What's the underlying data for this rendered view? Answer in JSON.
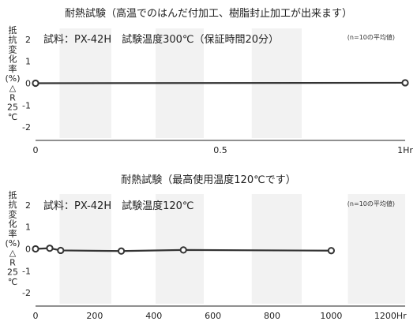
{
  "chart_data": [
    {
      "type": "line",
      "title": "耐熱試験（高温でのはんだ付加工、樹脂封止加工が出来ます）",
      "annotation": "試料：PX-42H　試験温度300℃（保証時間20分）",
      "note": "(n=10の平均値)",
      "ylabel": "抵抗変化率(%) △R 25℃",
      "ylabel_chars": [
        "抵",
        "抗",
        "変",
        "化",
        "率",
        "(%)",
        "△",
        "R",
        "25",
        "℃"
      ],
      "xlim": [
        0,
        1
      ],
      "ylim": [
        -2.5,
        2.5
      ],
      "x_ticks": [
        0,
        0.5,
        1
      ],
      "x_tick_labels": [
        "0",
        "0.5",
        "1Hr"
      ],
      "y_ticks": [
        2,
        1,
        0,
        -1,
        -2
      ],
      "y_tick_labels": [
        "2",
        "1",
        "0",
        "-1",
        "-2"
      ],
      "grid": "alternating vertical bands",
      "series": [
        {
          "x": [
            0,
            1
          ],
          "y": [
            0,
            0.02
          ]
        }
      ],
      "line_color": "#333333"
    },
    {
      "type": "line",
      "title": "耐熱試験（最高使用温度120℃です）",
      "annotation": "試料：PX-42H　試験温度120℃",
      "note": "(n=10の平均値)",
      "ylabel": "抵抗変化率(%) △R 25℃",
      "ylabel_chars": [
        "抵",
        "抗",
        "変",
        "化",
        "率",
        "(%)",
        "△",
        "R",
        "25",
        "℃"
      ],
      "xlim": [
        0,
        1250
      ],
      "ylim": [
        -2.5,
        2.5
      ],
      "x_ticks": [
        0,
        200,
        400,
        600,
        800,
        1000,
        1200
      ],
      "x_tick_labels": [
        "0",
        "200",
        "400",
        "600",
        "800",
        "1000",
        "1200Hr"
      ],
      "y_ticks": [
        2,
        1,
        0,
        -1,
        -2
      ],
      "y_tick_labels": [
        "2",
        "1",
        "0",
        "-1",
        "-2"
      ],
      "grid": "alternating vertical bands",
      "series": [
        {
          "x": [
            0,
            48,
            85,
            290,
            500,
            1000
          ],
          "y": [
            0,
            0.03,
            -0.07,
            -0.1,
            -0.05,
            -0.08
          ]
        }
      ],
      "line_color": "#333333"
    }
  ]
}
